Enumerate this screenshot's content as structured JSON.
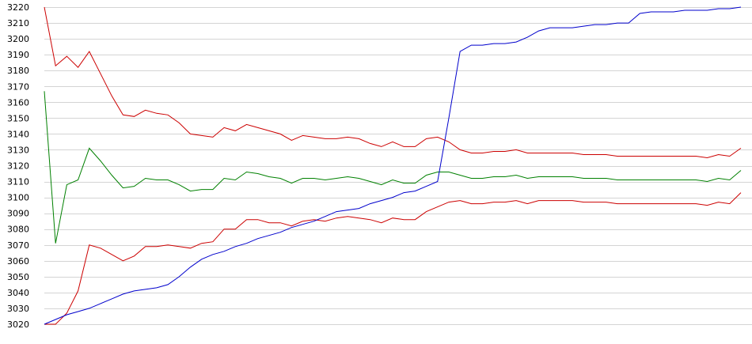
{
  "chart_data": {
    "type": "line",
    "xlabel": "",
    "ylabel": "",
    "grid": true,
    "legend": "none",
    "ylim": [
      3020,
      3220
    ],
    "yticks": [
      3020,
      3030,
      3040,
      3050,
      3060,
      3070,
      3080,
      3090,
      3100,
      3110,
      3120,
      3130,
      3140,
      3150,
      3160,
      3170,
      3180,
      3190,
      3200,
      3210,
      3220
    ],
    "xlim": [
      0,
      62
    ],
    "x": [
      0,
      1,
      2,
      3,
      4,
      5,
      6,
      7,
      8,
      9,
      10,
      11,
      12,
      13,
      14,
      15,
      16,
      17,
      18,
      19,
      20,
      21,
      22,
      23,
      24,
      25,
      26,
      27,
      28,
      29,
      30,
      31,
      32,
      33,
      34,
      35,
      36,
      37,
      38,
      39,
      40,
      41,
      42,
      43,
      44,
      45,
      46,
      47,
      48,
      49,
      50,
      51,
      52,
      53,
      54,
      55,
      56,
      57,
      58,
      59,
      60,
      61,
      62
    ],
    "series": [
      {
        "color": "#cc0000",
        "values": [
          3220,
          3183,
          3189,
          3182,
          3192,
          3178,
          3164,
          3152,
          3151,
          3155,
          3153,
          3152,
          3147,
          3140,
          3139,
          3138,
          3144,
          3142,
          3146,
          3144,
          3142,
          3140,
          3136,
          3139,
          3138,
          3137,
          3137,
          3138,
          3137,
          3134,
          3132,
          3135,
          3132,
          3132,
          3137,
          3138,
          3135,
          3130,
          3128,
          3128,
          3129,
          3129,
          3130,
          3128,
          3128,
          3128,
          3128,
          3128,
          3127,
          3127,
          3127,
          3126,
          3126,
          3126,
          3126,
          3126,
          3126,
          3126,
          3126,
          3125,
          3127,
          3126,
          3131
        ]
      },
      {
        "color": "#008000",
        "values": [
          3167,
          3071,
          3108,
          3111,
          3131,
          3123,
          3114,
          3106,
          3107,
          3112,
          3111,
          3111,
          3108,
          3104,
          3105,
          3105,
          3112,
          3111,
          3116,
          3115,
          3113,
          3112,
          3109,
          3112,
          3112,
          3111,
          3112,
          3113,
          3112,
          3110,
          3108,
          3111,
          3109,
          3109,
          3114,
          3116,
          3116,
          3114,
          3112,
          3112,
          3113,
          3113,
          3114,
          3112,
          3113,
          3113,
          3113,
          3113,
          3112,
          3112,
          3112,
          3111,
          3111,
          3111,
          3111,
          3111,
          3111,
          3111,
          3111,
          3110,
          3112,
          3111,
          3117
        ]
      },
      {
        "color": "#cc0000",
        "values": [
          3020,
          3020,
          3027,
          3041,
          3070,
          3068,
          3064,
          3060,
          3063,
          3069,
          3069,
          3070,
          3069,
          3068,
          3071,
          3072,
          3080,
          3080,
          3086,
          3086,
          3084,
          3084,
          3082,
          3085,
          3086,
          3085,
          3087,
          3088,
          3087,
          3086,
          3084,
          3087,
          3086,
          3086,
          3091,
          3094,
          3097,
          3098,
          3096,
          3096,
          3097,
          3097,
          3098,
          3096,
          3098,
          3098,
          3098,
          3098,
          3097,
          3097,
          3097,
          3096,
          3096,
          3096,
          3096,
          3096,
          3096,
          3096,
          3096,
          3095,
          3097,
          3096,
          3103
        ]
      },
      {
        "color": "#0000cc",
        "values": [
          3020,
          3023,
          3026,
          3028,
          3030,
          3033,
          3036,
          3039,
          3041,
          3042,
          3043,
          3045,
          3050,
          3056,
          3061,
          3064,
          3066,
          3069,
          3071,
          3074,
          3076,
          3078,
          3081,
          3083,
          3085,
          3088,
          3091,
          3092,
          3093,
          3096,
          3098,
          3100,
          3103,
          3104,
          3107,
          3110,
          3150,
          3192,
          3196,
          3196,
          3197,
          3197,
          3198,
          3201,
          3205,
          3207,
          3207,
          3207,
          3208,
          3209,
          3209,
          3210,
          3210,
          3216,
          3217,
          3217,
          3217,
          3218,
          3218,
          3218,
          3219,
          3219,
          3220
        ]
      }
    ]
  }
}
